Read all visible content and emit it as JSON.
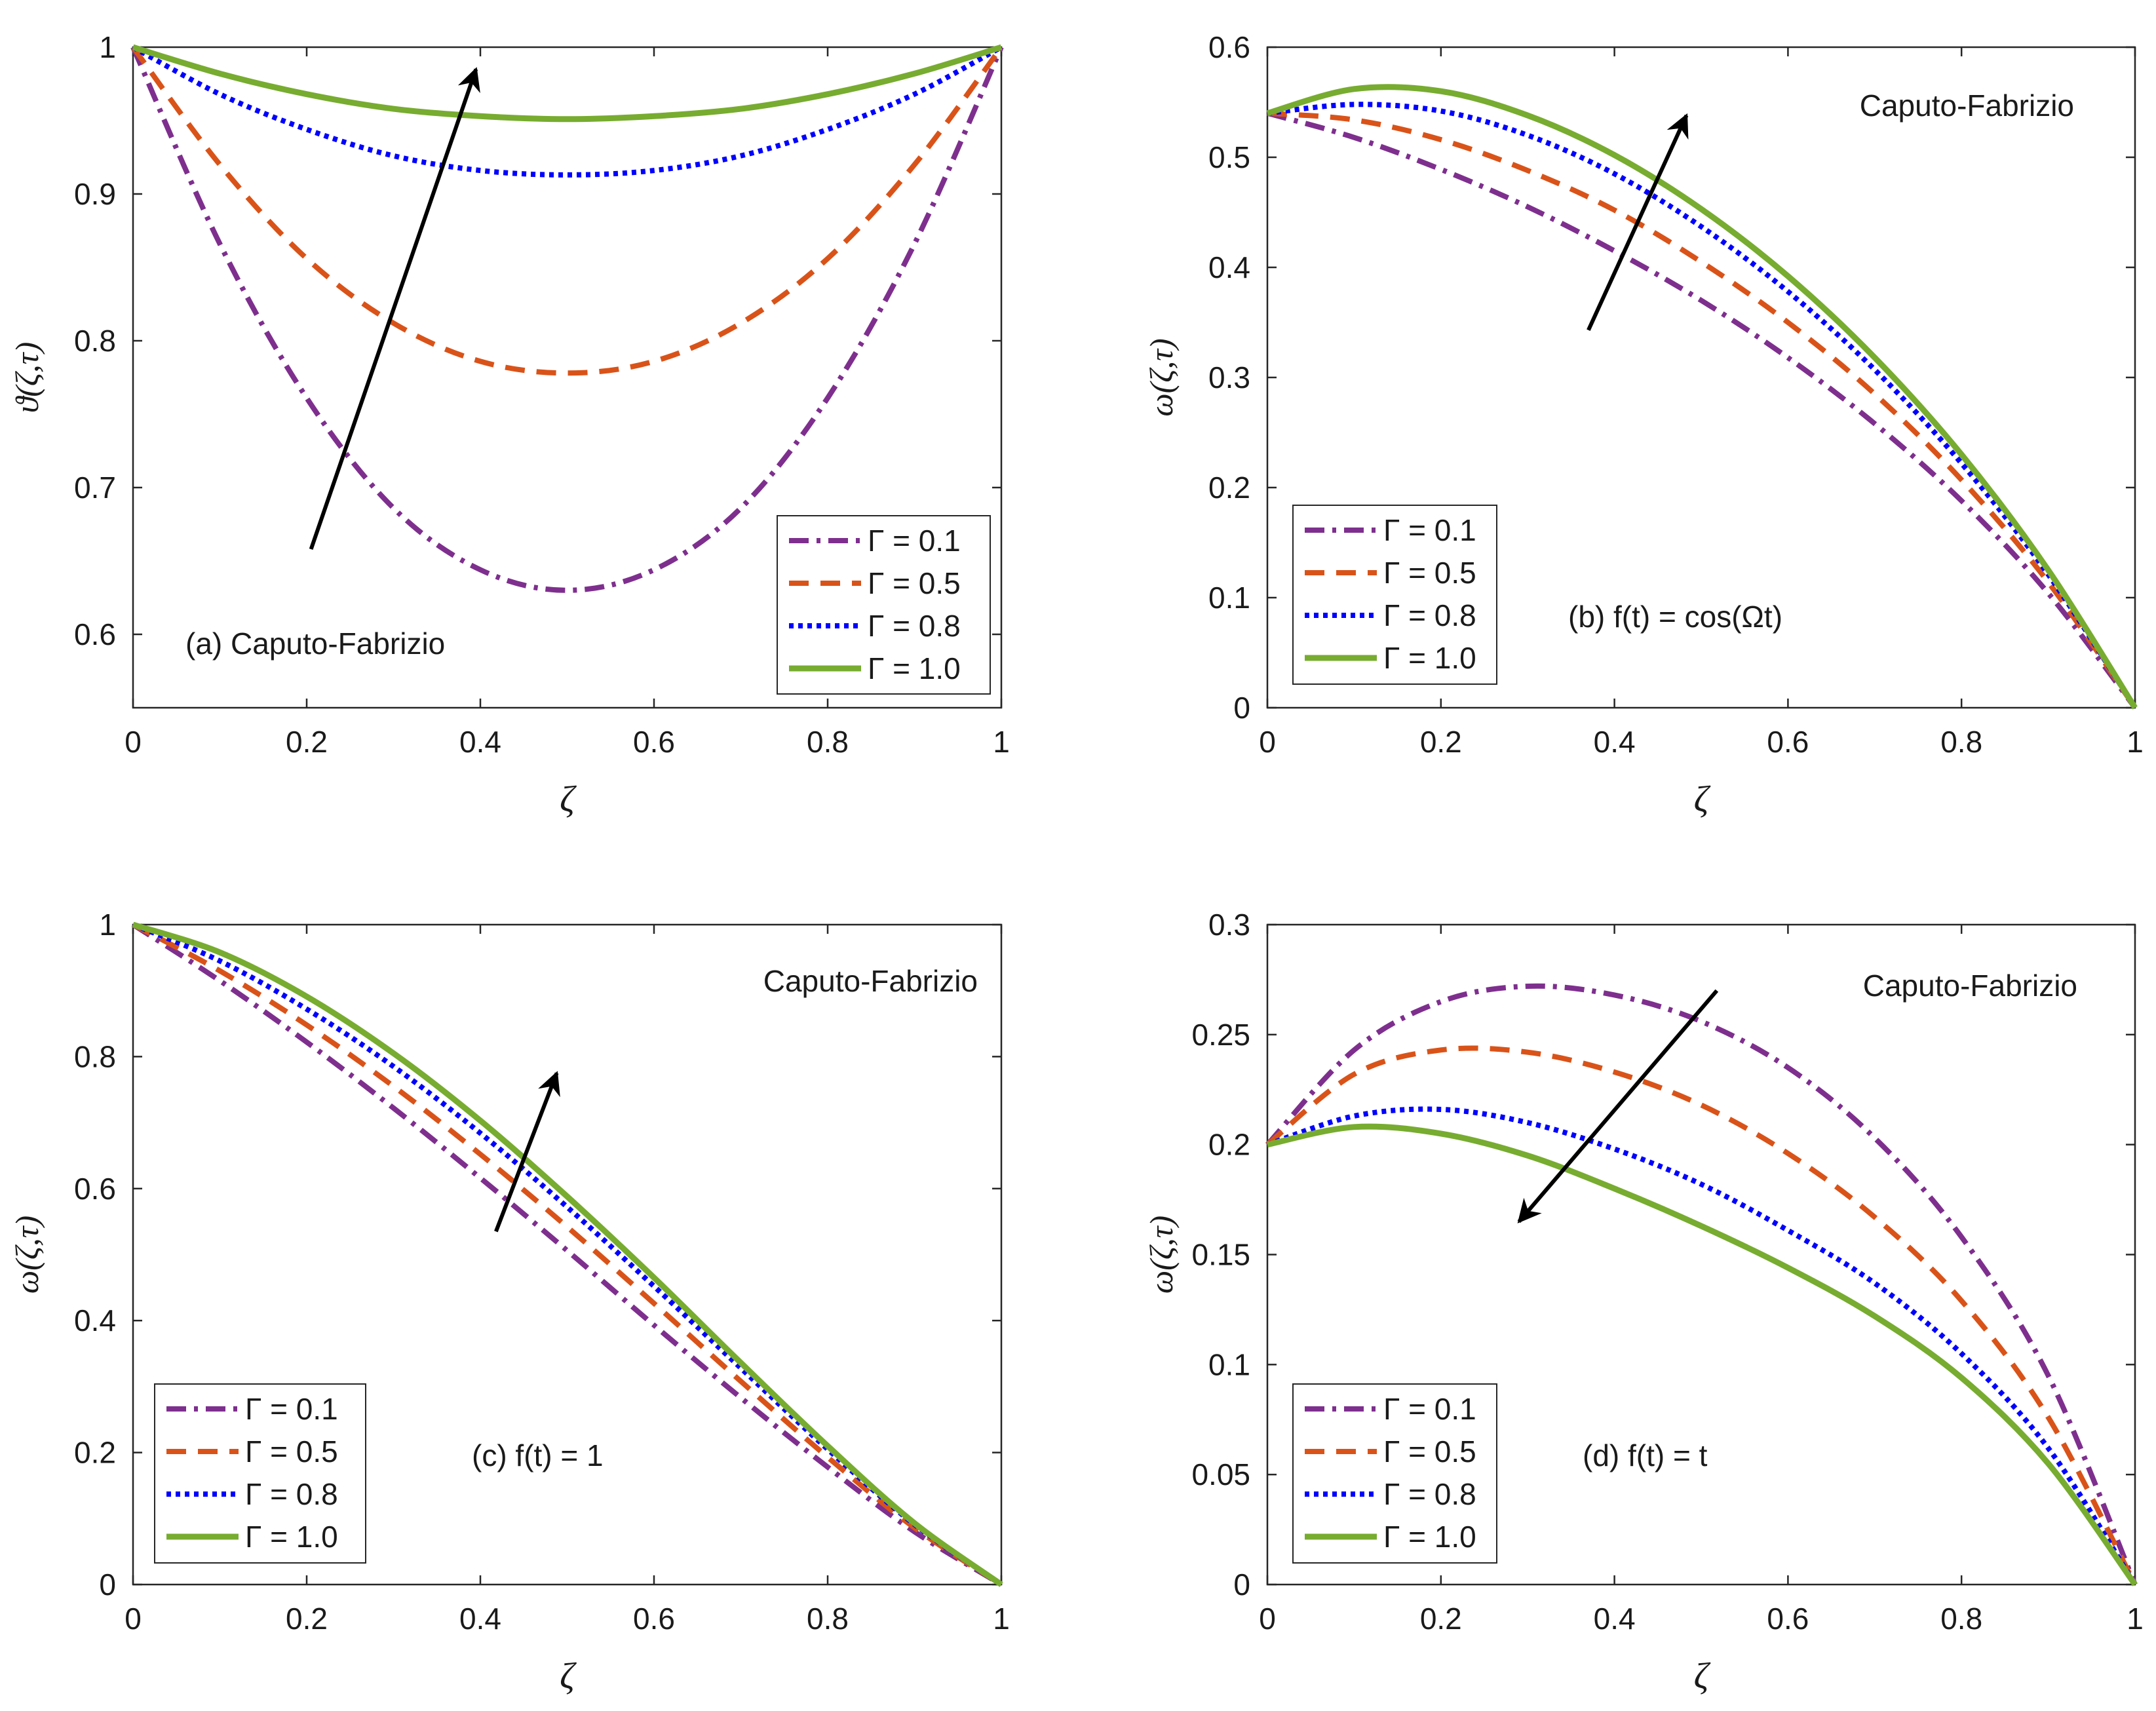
{
  "style": {
    "series_colors": [
      "#7E2F8E",
      "#D95319",
      "#0000FF",
      "#77AC30"
    ],
    "series_dash": [
      "dashdot",
      "dash",
      "dot",
      "solid"
    ],
    "arrow_color": "#000000"
  },
  "chart_data": [
    {
      "id": "a",
      "type": "line",
      "xlabel": "ζ",
      "ylabel": "ϑ(ζ,τ)",
      "xlim": [
        0,
        1
      ],
      "ylim": [
        0.55,
        1
      ],
      "xticks": [
        "0",
        "0.2",
        "0.4",
        "0.6",
        "0.8",
        "1"
      ],
      "xtick_values": [
        0,
        0.2,
        0.4,
        0.6,
        0.8,
        1
      ],
      "yticks": [
        "0.6",
        "0.7",
        "0.8",
        "0.9",
        "1"
      ],
      "ytick_values": [
        0.6,
        0.7,
        0.8,
        0.9,
        1
      ],
      "grid": false,
      "legend_position": "bottom-right",
      "annotations": [
        "(a) Caputo-Fabrizio"
      ],
      "trend_arrow": {
        "from": [
          0.205,
          0.658
        ],
        "to": [
          0.395,
          0.985
        ]
      },
      "x": [
        0,
        0.1,
        0.2,
        0.3,
        0.4,
        0.5,
        0.6,
        0.7,
        0.8,
        0.9,
        1
      ],
      "series": [
        {
          "name": "Γ = 0.1",
          "values": [
            1,
            0.866,
            0.761,
            0.686,
            0.644,
            0.63,
            0.644,
            0.686,
            0.761,
            0.866,
            1
          ]
        },
        {
          "name": "Γ = 0.5",
          "values": [
            1,
            0.92,
            0.856,
            0.812,
            0.786,
            0.778,
            0.786,
            0.812,
            0.856,
            0.92,
            1
          ]
        },
        {
          "name": "Γ = 0.8",
          "values": [
            1,
            0.968,
            0.944,
            0.926,
            0.916,
            0.913,
            0.916,
            0.926,
            0.944,
            0.968,
            1
          ]
        },
        {
          "name": "Γ = 1.0",
          "values": [
            1,
            0.982,
            0.968,
            0.958,
            0.953,
            0.951,
            0.953,
            0.958,
            0.968,
            0.982,
            1
          ]
        }
      ]
    },
    {
      "id": "b",
      "type": "line",
      "xlabel": "ζ",
      "ylabel": "ω(ζ,τ)",
      "xlim": [
        0,
        1
      ],
      "ylim": [
        0,
        0.6
      ],
      "xticks": [
        "0",
        "0.2",
        "0.4",
        "0.6",
        "0.8",
        "1"
      ],
      "xtick_values": [
        0,
        0.2,
        0.4,
        0.6,
        0.8,
        1
      ],
      "yticks": [
        "0",
        "0.1",
        "0.2",
        "0.3",
        "0.4",
        "0.5",
        "0.6"
      ],
      "ytick_values": [
        0,
        0.1,
        0.2,
        0.3,
        0.4,
        0.5,
        0.6
      ],
      "grid": false,
      "legend_position": "bottom-left",
      "annotations": [
        "Caputo-Fabrizio",
        "(b) f(t) = cos(Ωt)"
      ],
      "trend_arrow": {
        "from": [
          0.37,
          0.343
        ],
        "to": [
          0.483,
          0.538
        ]
      },
      "x": [
        0,
        0.1,
        0.2,
        0.3,
        0.4,
        0.5,
        0.6,
        0.7,
        0.8,
        0.9,
        1
      ],
      "series": [
        {
          "name": "Γ = 0.1",
          "values": [
            0.54,
            0.518,
            0.489,
            0.455,
            0.415,
            0.37,
            0.318,
            0.258,
            0.188,
            0.104,
            0
          ]
        },
        {
          "name": "Γ = 0.5",
          "values": [
            0.54,
            0.534,
            0.516,
            0.488,
            0.452,
            0.405,
            0.35,
            0.285,
            0.207,
            0.114,
            0
          ]
        },
        {
          "name": "Γ = 0.8",
          "values": [
            0.54,
            0.548,
            0.542,
            0.52,
            0.485,
            0.437,
            0.378,
            0.307,
            0.222,
            0.121,
            0
          ]
        },
        {
          "name": "Γ = 1.0",
          "values": [
            0.54,
            0.562,
            0.56,
            0.538,
            0.502,
            0.453,
            0.392,
            0.318,
            0.23,
            0.125,
            0
          ]
        }
      ]
    },
    {
      "id": "c",
      "type": "line",
      "xlabel": "ζ",
      "ylabel": "ω(ζ,τ)",
      "xlim": [
        0,
        1
      ],
      "ylim": [
        0,
        1
      ],
      "xticks": [
        "0",
        "0.2",
        "0.4",
        "0.6",
        "0.8",
        "1"
      ],
      "xtick_values": [
        0,
        0.2,
        0.4,
        0.6,
        0.8,
        1
      ],
      "yticks": [
        "0",
        "0.2",
        "0.4",
        "0.6",
        "0.8",
        "1"
      ],
      "ytick_values": [
        0,
        0.2,
        0.4,
        0.6,
        0.8,
        1
      ],
      "grid": false,
      "legend_position": "bottom-left",
      "annotations": [
        "Caputo-Fabrizio",
        "(c) f(t) = 1"
      ],
      "trend_arrow": {
        "from": [
          0.418,
          0.535
        ],
        "to": [
          0.488,
          0.775
        ]
      },
      "x": [
        0,
        0.1,
        0.2,
        0.3,
        0.4,
        0.5,
        0.6,
        0.7,
        0.8,
        0.9,
        1
      ],
      "series": [
        {
          "name": "Γ = 0.1",
          "values": [
            1,
            0.915,
            0.822,
            0.722,
            0.616,
            0.506,
            0.393,
            0.283,
            0.178,
            0.08,
            0
          ]
        },
        {
          "name": "Γ = 0.5",
          "values": [
            1,
            0.93,
            0.848,
            0.755,
            0.652,
            0.542,
            0.426,
            0.308,
            0.193,
            0.086,
            0
          ]
        },
        {
          "name": "Γ = 0.8",
          "values": [
            1,
            0.945,
            0.872,
            0.785,
            0.684,
            0.572,
            0.452,
            0.328,
            0.205,
            0.091,
            0
          ]
        },
        {
          "name": "Γ = 1.0",
          "values": [
            1,
            0.958,
            0.891,
            0.805,
            0.703,
            0.588,
            0.465,
            0.336,
            0.21,
            0.093,
            0
          ]
        }
      ]
    },
    {
      "id": "d",
      "type": "line",
      "xlabel": "ζ",
      "ylabel": "ω(ζ,τ)",
      "xlim": [
        0,
        1
      ],
      "ylim": [
        0,
        0.3
      ],
      "xticks": [
        "0",
        "0.2",
        "0.4",
        "0.6",
        "0.8",
        "1"
      ],
      "xtick_values": [
        0,
        0.2,
        0.4,
        0.6,
        0.8,
        1
      ],
      "yticks": [
        "0",
        "0.05",
        "0.1",
        "0.15",
        "0.2",
        "0.25",
        "0.3"
      ],
      "ytick_values": [
        0,
        0.05,
        0.1,
        0.15,
        0.2,
        0.25,
        0.3
      ],
      "grid": false,
      "legend_position": "bottom-left",
      "annotations": [
        "Caputo-Fabrizio",
        "(d) f(t) = t"
      ],
      "trend_arrow": {
        "from": [
          0.518,
          0.27
        ],
        "to": [
          0.29,
          0.165
        ]
      },
      "x": [
        0,
        0.1,
        0.2,
        0.3,
        0.4,
        0.5,
        0.6,
        0.7,
        0.8,
        0.9,
        1
      ],
      "series": [
        {
          "name": "Γ = 0.1",
          "values": [
            0.2,
            0.243,
            0.265,
            0.272,
            0.268,
            0.256,
            0.235,
            0.203,
            0.158,
            0.095,
            0
          ]
        },
        {
          "name": "Γ = 0.5",
          "values": [
            0.2,
            0.232,
            0.243,
            0.242,
            0.233,
            0.218,
            0.196,
            0.167,
            0.129,
            0.076,
            0
          ]
        },
        {
          "name": "Γ = 0.8",
          "values": [
            0.2,
            0.213,
            0.216,
            0.21,
            0.198,
            0.182,
            0.161,
            0.137,
            0.105,
            0.062,
            0
          ]
        },
        {
          "name": "Γ = 1.0",
          "values": [
            0.2,
            0.208,
            0.205,
            0.195,
            0.18,
            0.163,
            0.144,
            0.122,
            0.094,
            0.055,
            0
          ]
        }
      ]
    }
  ]
}
